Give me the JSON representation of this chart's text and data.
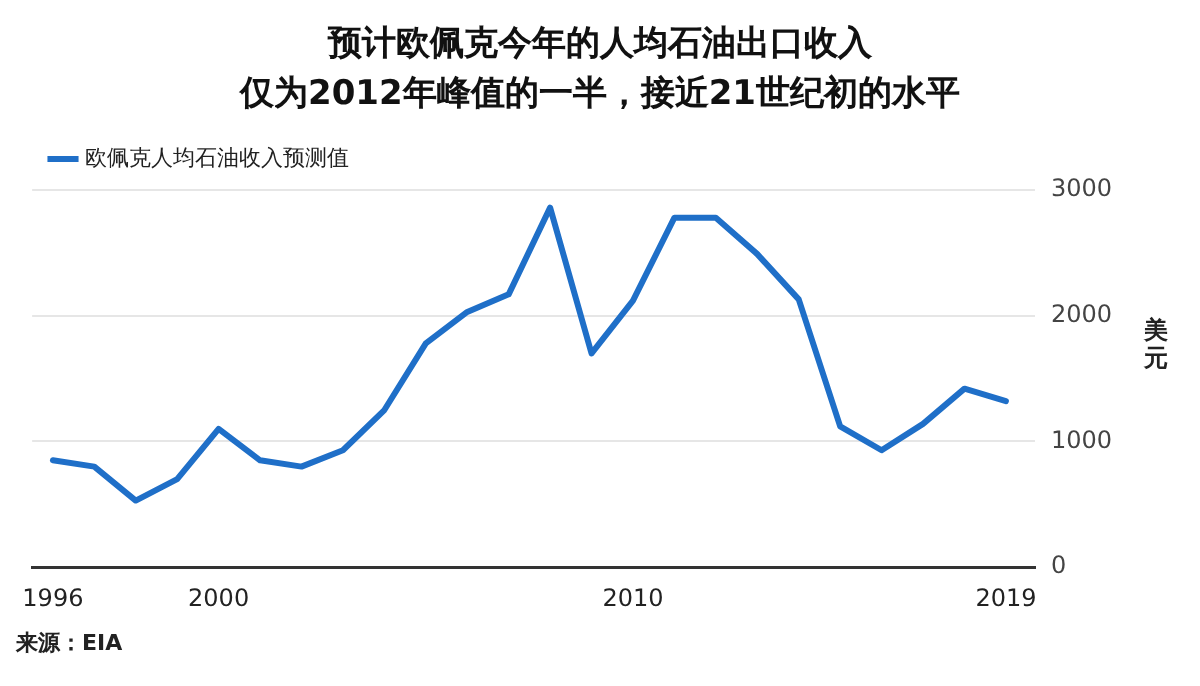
{
  "chart_data": {
    "type": "line",
    "title": "预计欧佩克今年的人均石油出口收入",
    "subtitle": "仅为2012年峰值的一半，接近21世纪初的水平",
    "ylabel": "美元",
    "annotations": [
      "来源：EIA"
    ],
    "x": [
      1996,
      1997,
      1998,
      1999,
      2000,
      2001,
      2002,
      2003,
      2004,
      2005,
      2006,
      2007,
      2008,
      2009,
      2010,
      2011,
      2012,
      2013,
      2014,
      2015,
      2016,
      2017,
      2018,
      2019
    ],
    "series": [
      {
        "name": "欧佩克人均石油收入预测值",
        "color": "#1f6fc8",
        "values": [
          850,
          800,
          530,
          700,
          1100,
          850,
          800,
          930,
          1250,
          1780,
          2030,
          2170,
          2860,
          1700,
          2120,
          2780,
          2780,
          2490,
          2130,
          1120,
          930,
          1140,
          1420,
          1320
        ]
      }
    ],
    "xlim": [
      1995.5,
      2019.7
    ],
    "xticks": [
      1996,
      2000,
      2010,
      2019
    ],
    "ylim": [
      0,
      3000
    ],
    "yticks": [
      0,
      1000,
      2000,
      3000
    ],
    "grid": "y",
    "legend": "top left",
    "marker": "none",
    "line_style": "solid"
  }
}
